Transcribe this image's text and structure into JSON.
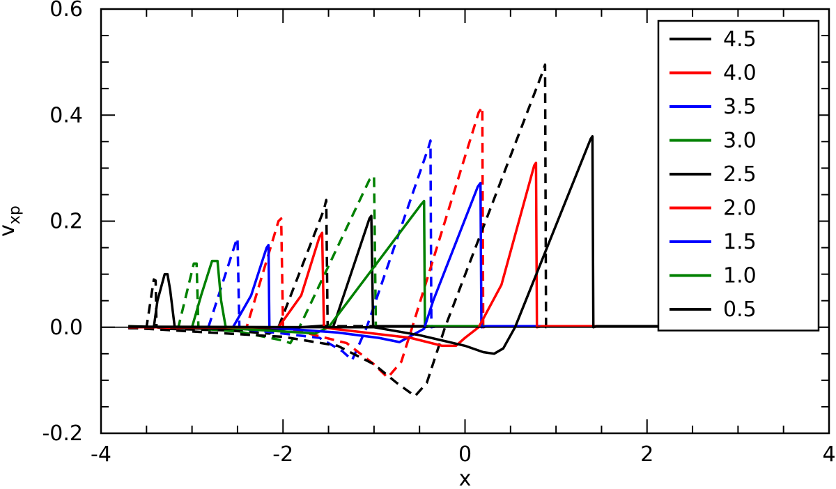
{
  "chart_data": {
    "type": "line",
    "title": "",
    "xlabel": "x",
    "ylabel": "v",
    "ylabel_subscript": "xp",
    "xlim": [
      -4,
      4
    ],
    "ylim": [
      -0.2,
      0.6
    ],
    "xticks": [
      -4,
      -2,
      0,
      2,
      4
    ],
    "xtick_labels": [
      "-4",
      "-2",
      "0",
      "2",
      "4"
    ],
    "yticks": [
      -0.2,
      0.0,
      0.2,
      0.4,
      0.6
    ],
    "ytick_labels": [
      "-0.2",
      "0.0",
      "0.2",
      "0.4",
      "0.6"
    ],
    "x_minor_step": 0.5,
    "y_minor_step": 0.05,
    "grid": false,
    "legend_position": "top-right",
    "legend": [
      {
        "label": "4.5",
        "color": "#000000"
      },
      {
        "label": "4.0",
        "color": "#ff0000"
      },
      {
        "label": "3.5",
        "color": "#0000ff"
      },
      {
        "label": "3.0",
        "color": "#008000"
      },
      {
        "label": "2.5",
        "color": "#000000"
      },
      {
        "label": "2.0",
        "color": "#ff0000"
      },
      {
        "label": "1.5",
        "color": "#0000ff"
      },
      {
        "label": "1.0",
        "color": "#008000"
      },
      {
        "label": "0.5",
        "color": "#000000"
      }
    ],
    "series": [
      {
        "color": "#000000",
        "dashed": true,
        "points": [
          [
            -3.7,
            -0.002
          ],
          [
            -3.55,
            -0.002
          ],
          [
            -3.5,
            0.0
          ],
          [
            -3.42,
            0.09
          ],
          [
            -3.4,
            0.088
          ],
          [
            -3.39,
            0.0
          ],
          [
            -3.3,
            -0.003
          ],
          [
            -2.6,
            -0.006
          ],
          [
            -2.15,
            -0.012
          ],
          [
            -2.05,
            0.0
          ],
          [
            -1.55,
            0.222
          ],
          [
            -1.525,
            0.24
          ],
          [
            -1.51,
            0.0
          ],
          [
            -1.45,
            0.002
          ],
          [
            3.7,
            0.002
          ]
        ]
      },
      {
        "color": "#008000",
        "dashed": true,
        "points": [
          [
            -3.7,
            -0.001
          ],
          [
            -3.2,
            -0.002
          ],
          [
            -3.15,
            0.0
          ],
          [
            -2.98,
            0.12
          ],
          [
            -2.95,
            0.12
          ],
          [
            -2.93,
            0.0
          ],
          [
            -2.9,
            -0.003
          ],
          [
            -2.5,
            -0.008
          ],
          [
            -2.0,
            -0.025
          ],
          [
            -1.92,
            -0.03
          ],
          [
            -1.82,
            0.0
          ],
          [
            -1.05,
            0.278
          ],
          [
            -1.0,
            0.285
          ],
          [
            -0.98,
            0.0
          ],
          [
            -0.9,
            0.002
          ],
          [
            3.7,
            0.002
          ]
        ]
      },
      {
        "color": "#0000ff",
        "dashed": true,
        "points": [
          [
            -3.7,
            -0.001
          ],
          [
            -2.9,
            -0.002
          ],
          [
            -2.82,
            0.0
          ],
          [
            -2.52,
            0.16
          ],
          [
            -2.5,
            0.168
          ],
          [
            -2.48,
            0.0
          ],
          [
            -2.4,
            -0.004
          ],
          [
            -1.6,
            -0.02
          ],
          [
            -1.35,
            -0.045
          ],
          [
            -1.24,
            -0.062
          ],
          [
            -1.08,
            0.0
          ],
          [
            -0.4,
            0.34
          ],
          [
            -0.38,
            0.352
          ],
          [
            -0.37,
            0.0
          ],
          [
            -0.3,
            0.002
          ],
          [
            3.7,
            0.002
          ]
        ]
      },
      {
        "color": "#ff0000",
        "dashed": true,
        "points": [
          [
            -3.7,
            -0.001
          ],
          [
            -2.5,
            -0.003
          ],
          [
            -2.4,
            0.0
          ],
          [
            -2.05,
            0.2
          ],
          [
            -2.02,
            0.205
          ],
          [
            -2.0,
            0.0
          ],
          [
            -1.9,
            -0.004
          ],
          [
            -1.3,
            -0.03
          ],
          [
            -1.0,
            -0.07
          ],
          [
            -0.85,
            -0.095
          ],
          [
            -0.7,
            -0.065
          ],
          [
            -0.58,
            0.0
          ],
          [
            0.15,
            0.405
          ],
          [
            0.19,
            0.415
          ],
          [
            0.2,
            0.0
          ],
          [
            0.25,
            0.002
          ],
          [
            3.7,
            0.002
          ]
        ]
      },
      {
        "color": "#000000",
        "dashed": true,
        "points": [
          [
            -3.7,
            -0.001
          ],
          [
            -2.0,
            -0.018
          ],
          [
            -1.4,
            -0.035
          ],
          [
            -1.0,
            -0.07
          ],
          [
            -0.75,
            -0.105
          ],
          [
            -0.55,
            -0.13
          ],
          [
            -0.42,
            -0.105
          ],
          [
            -0.22,
            0.0
          ],
          [
            0.85,
            0.48
          ],
          [
            0.88,
            0.495
          ],
          [
            0.89,
            0.0
          ],
          [
            0.95,
            0.002
          ],
          [
            3.7,
            0.002
          ]
        ]
      },
      {
        "color": "#000000",
        "dashed": false,
        "points": [
          [
            -3.7,
            0.002
          ],
          [
            -3.5,
            0.001
          ],
          [
            -3.42,
            0.0
          ],
          [
            -3.38,
            0.05
          ],
          [
            -3.3,
            0.1
          ],
          [
            -3.27,
            0.1
          ],
          [
            -3.24,
            0.07
          ],
          [
            -3.19,
            0.0
          ],
          [
            -3.1,
            -0.002
          ],
          [
            -2.0,
            -0.004
          ],
          [
            -1.8,
            0.0
          ],
          [
            -1.55,
            0.003
          ],
          [
            -1.45,
            0.0
          ],
          [
            -1.05,
            0.205
          ],
          [
            -1.03,
            0.21
          ],
          [
            -1.01,
            0.0
          ],
          [
            -0.95,
            0.002
          ],
          [
            3.7,
            0.002
          ]
        ]
      },
      {
        "color": "#008000",
        "dashed": false,
        "points": [
          [
            -3.7,
            0.001
          ],
          [
            -3.15,
            0.0
          ],
          [
            -3.0,
            0.0
          ],
          [
            -2.9,
            0.06
          ],
          [
            -2.78,
            0.125
          ],
          [
            -2.72,
            0.125
          ],
          [
            -2.68,
            0.05
          ],
          [
            -2.63,
            0.0
          ],
          [
            -2.5,
            -0.003
          ],
          [
            -1.8,
            -0.01
          ],
          [
            -1.65,
            -0.012
          ],
          [
            -1.5,
            0.0
          ],
          [
            -0.48,
            0.232
          ],
          [
            -0.45,
            0.238
          ],
          [
            -0.44,
            0.0
          ],
          [
            -0.38,
            0.002
          ],
          [
            3.7,
            0.002
          ]
        ]
      },
      {
        "color": "#0000ff",
        "dashed": false,
        "points": [
          [
            -3.7,
            0.0
          ],
          [
            -2.55,
            0.0
          ],
          [
            -2.35,
            0.06
          ],
          [
            -2.18,
            0.15
          ],
          [
            -2.16,
            0.155
          ],
          [
            -2.15,
            0.0
          ],
          [
            -2.05,
            -0.002
          ],
          [
            -1.4,
            -0.01
          ],
          [
            -0.95,
            -0.02
          ],
          [
            -0.72,
            -0.028
          ],
          [
            -0.45,
            -0.003
          ],
          [
            -0.35,
            0.05
          ],
          [
            0.14,
            0.265
          ],
          [
            0.17,
            0.272
          ],
          [
            0.18,
            0.0
          ],
          [
            0.25,
            0.002
          ],
          [
            3.7,
            0.002
          ]
        ]
      },
      {
        "color": "#ff0000",
        "dashed": false,
        "points": [
          [
            -3.7,
            0.0
          ],
          [
            -2.05,
            0.0
          ],
          [
            -1.8,
            0.06
          ],
          [
            -1.6,
            0.17
          ],
          [
            -1.57,
            0.178
          ],
          [
            -1.55,
            0.0
          ],
          [
            -1.45,
            -0.003
          ],
          [
            -0.6,
            -0.02
          ],
          [
            -0.25,
            -0.035
          ],
          [
            -0.1,
            -0.035
          ],
          [
            0.0,
            -0.02
          ],
          [
            0.15,
            0.0
          ],
          [
            0.4,
            0.08
          ],
          [
            0.76,
            0.305
          ],
          [
            0.78,
            0.31
          ],
          [
            0.79,
            0.0
          ],
          [
            0.85,
            0.002
          ],
          [
            3.7,
            0.002
          ]
        ]
      },
      {
        "color": "#000000",
        "dashed": false,
        "points": [
          [
            -3.7,
            0.001
          ],
          [
            -1.0,
            0.0
          ],
          [
            -0.5,
            -0.015
          ],
          [
            0.0,
            -0.035
          ],
          [
            0.2,
            -0.047
          ],
          [
            0.32,
            -0.05
          ],
          [
            0.42,
            -0.04
          ],
          [
            0.55,
            0.0
          ],
          [
            1.38,
            0.355
          ],
          [
            1.4,
            0.36
          ],
          [
            1.41,
            0.0
          ],
          [
            1.45,
            0.002
          ],
          [
            3.7,
            0.002
          ]
        ]
      }
    ]
  }
}
